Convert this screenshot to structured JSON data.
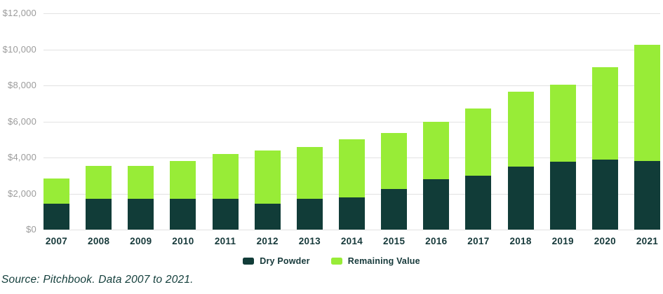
{
  "chart_data": {
    "type": "bar",
    "stacked": true,
    "categories": [
      "2007",
      "2008",
      "2009",
      "2010",
      "2011",
      "2012",
      "2013",
      "2014",
      "2015",
      "2016",
      "2017",
      "2018",
      "2019",
      "2020",
      "2021"
    ],
    "series": [
      {
        "name": "Dry Powder",
        "color": "#113C38",
        "values": [
          1450,
          1700,
          1700,
          1700,
          1700,
          1450,
          1700,
          1800,
          2250,
          2800,
          3000,
          3500,
          3750,
          3900,
          3800
        ]
      },
      {
        "name": "Remaining Value",
        "color": "#98EC37",
        "values": [
          1400,
          1850,
          1850,
          2100,
          2500,
          2950,
          2900,
          3200,
          3100,
          3200,
          3700,
          4150,
          4300,
          5100,
          6450
        ]
      }
    ],
    "ylim": [
      0,
      12000
    ],
    "ytick_step": 2000,
    "ytick_labels": [
      "$0",
      "$2,000",
      "$4,000",
      "$6,000",
      "$8,000",
      "$10,000",
      "$12,000"
    ],
    "xlabel": "",
    "ylabel": "",
    "title": "",
    "grid": true,
    "legend_position": "bottom-center"
  },
  "source_note": "Source: Pitchbook. Data 2007 to 2021."
}
